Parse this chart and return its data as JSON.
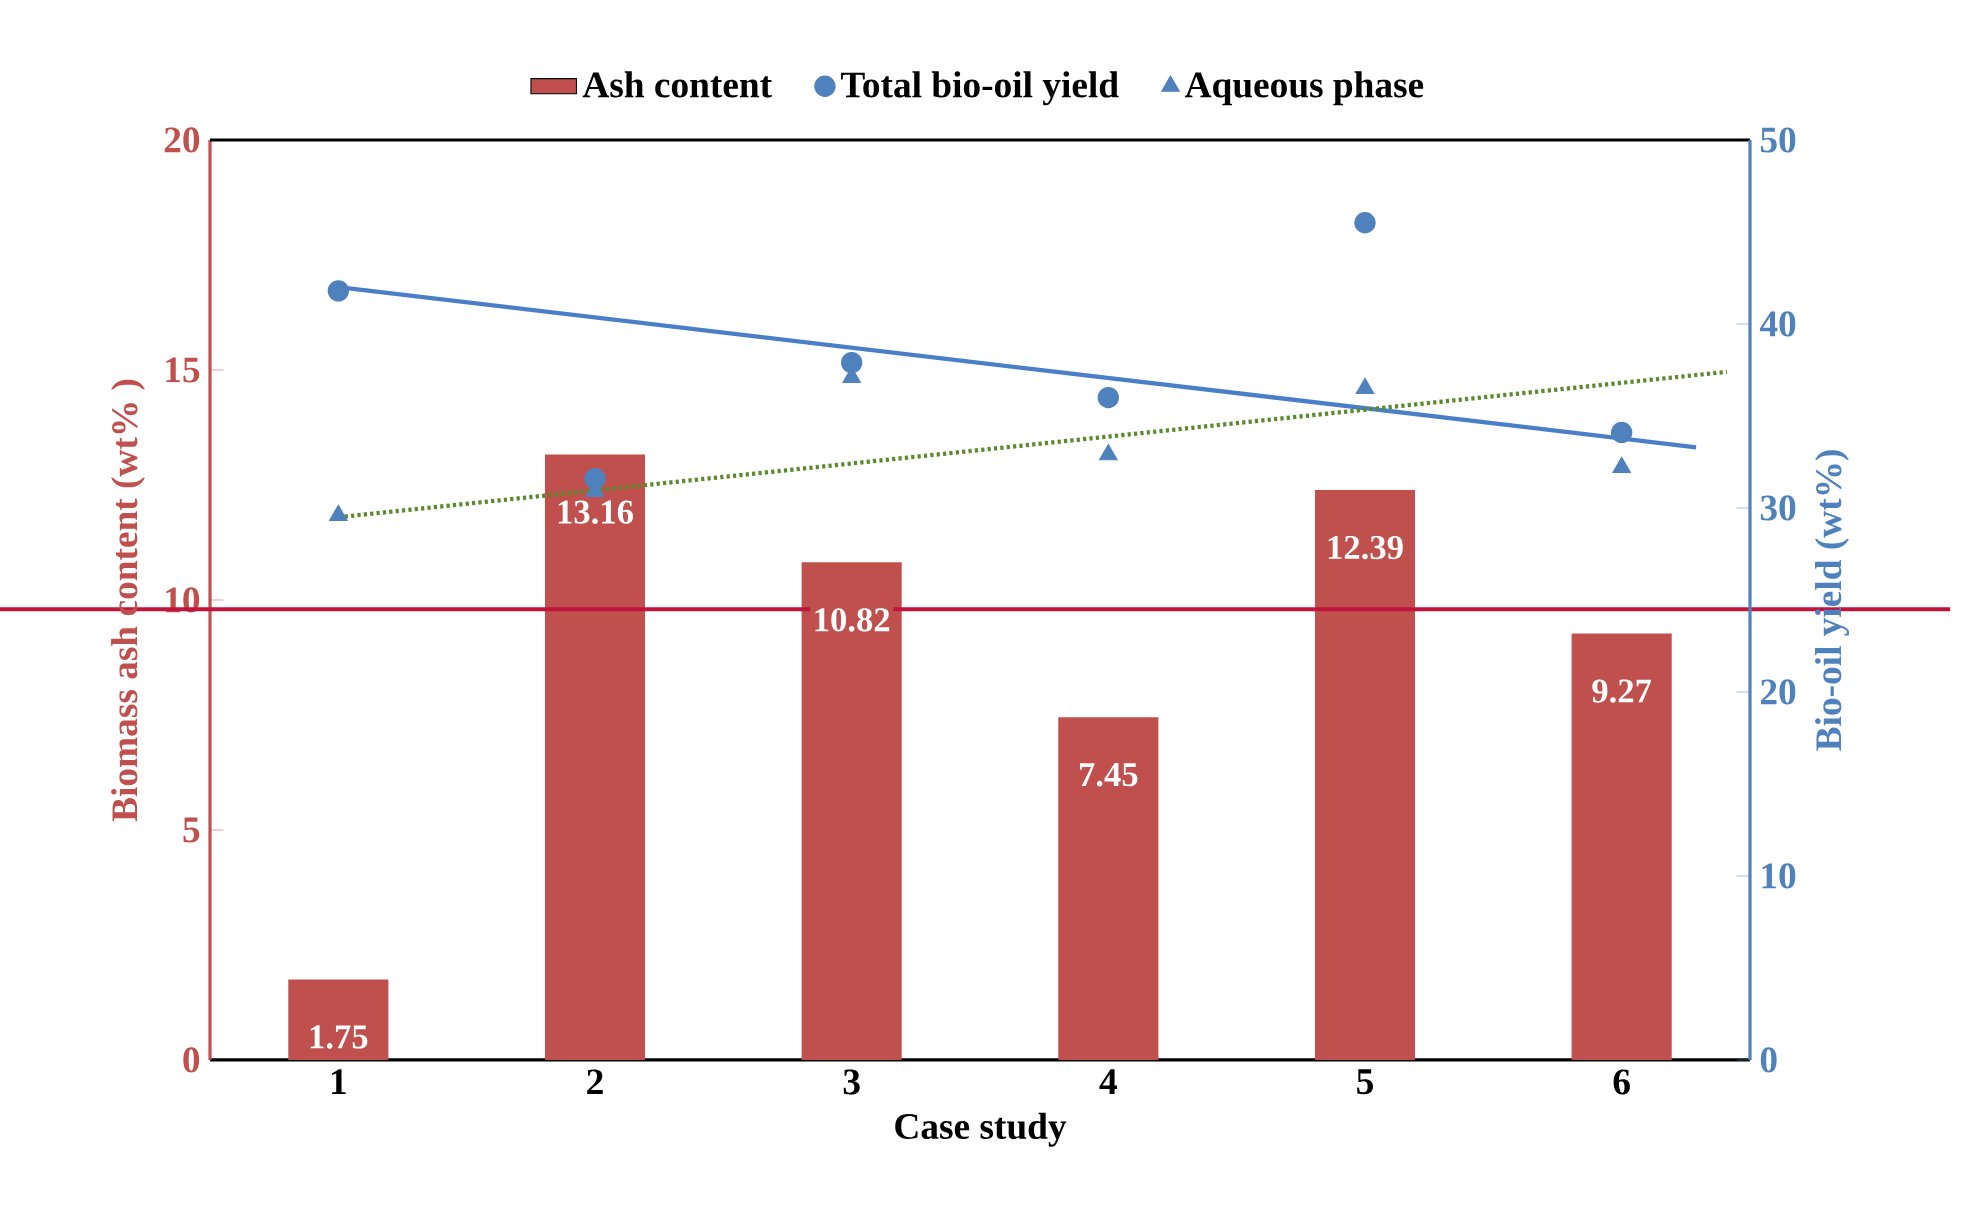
{
  "chart_data": {
    "type": "bar",
    "xlabel": "Case study",
    "ylabel": "Biomass ash content  (wt% )",
    "y2label": "Bio-oil yield (wt%)",
    "x": [
      1,
      2,
      3,
      4,
      5,
      6
    ],
    "xlim": [
      0.5,
      6.5
    ],
    "xticks": [
      1,
      2,
      3,
      4,
      5,
      6
    ],
    "ylim": [
      0,
      20
    ],
    "yticks": [
      0,
      5,
      10,
      15,
      20
    ],
    "y2lim": [
      0,
      50
    ],
    "y2ticks": [
      0,
      10,
      20,
      30,
      40,
      50
    ],
    "series": [
      {
        "name": "Ash content",
        "color": "#c0504d",
        "values": [
          1.75,
          13.16,
          10.82,
          7.45,
          12.39,
          9.27
        ],
        "value_labels": [
          "1.75",
          "13.16",
          "10.82",
          "7.45",
          "12.39",
          "9.27"
        ]
      },
      {
        "name": "Total bio-oil yield",
        "type": "scatter",
        "axis": "y2",
        "marker": "circle",
        "color": "#4f81bd",
        "values": [
          41.8,
          31.6,
          37.9,
          36.0,
          45.5,
          34.1
        ]
      },
      {
        "name": "Aqueous phase",
        "type": "scatter",
        "axis": "y2",
        "marker": "triangle",
        "color": "#4f81bd",
        "values": [
          29.6,
          30.9,
          37.1,
          32.9,
          36.5,
          32.2
        ]
      },
      {
        "type": "line",
        "axis": "y2",
        "color": "#4a7ec8",
        "line_style": "solid",
        "x": [
          1,
          6.29
        ],
        "values": [
          42.0,
          33.3
        ]
      },
      {
        "type": "line",
        "axis": "y2",
        "color": "#5a8a2a",
        "line_style": "dotted",
        "x": [
          1,
          6.41
        ],
        "values": [
          29.5,
          37.4
        ]
      }
    ],
    "ref_lines": [
      {
        "axis": "y",
        "value": 9.8,
        "color": "#c0143c"
      }
    ],
    "legend": "top",
    "grid": false
  }
}
